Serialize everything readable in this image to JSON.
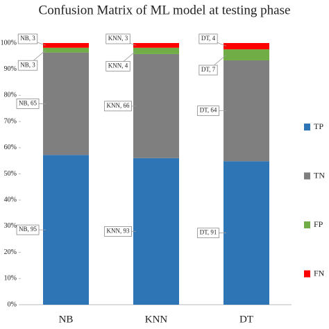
{
  "chart_data": {
    "type": "bar",
    "stacking": "percent",
    "title": "Confusion Matrix of ML model at testing phase",
    "categories": [
      "NB",
      "KNN",
      "DT"
    ],
    "series": [
      {
        "name": "TP",
        "color": "#2e75b6",
        "values": [
          95,
          93,
          91
        ],
        "value_labels": [
          "NB, 95",
          "KNN, 93",
          "DT, 91"
        ]
      },
      {
        "name": "TN",
        "color": "#7f7f7f",
        "values": [
          65,
          66,
          64
        ],
        "value_labels": [
          "NB, 65",
          "KNN, 66",
          "DT, 64"
        ]
      },
      {
        "name": "FP",
        "color": "#70ad47",
        "values": [
          3,
          4,
          7
        ],
        "value_labels": [
          "NB, 3",
          "KNN, 4",
          "DT, 7"
        ]
      },
      {
        "name": "FN",
        "color": "#ff0000",
        "values": [
          3,
          3,
          4
        ],
        "value_labels": [
          "NB, 3",
          "KNN, 3",
          "DT, 4"
        ]
      }
    ],
    "ylim": [
      0,
      100
    ],
    "yticks": [
      {
        "value": 0,
        "label": "0%"
      },
      {
        "value": 10,
        "label": "10%"
      },
      {
        "value": 20,
        "label": "20%"
      },
      {
        "value": 30,
        "label": "30%"
      },
      {
        "value": 40,
        "label": "40%"
      },
      {
        "value": 50,
        "label": "50%"
      },
      {
        "value": 60,
        "label": "60%"
      },
      {
        "value": 70,
        "label": "70%"
      },
      {
        "value": 80,
        "label": "80%"
      },
      {
        "value": 90,
        "label": "90%"
      },
      {
        "value": 100,
        "label": "100%"
      }
    ],
    "grid": false,
    "legend": "right"
  }
}
